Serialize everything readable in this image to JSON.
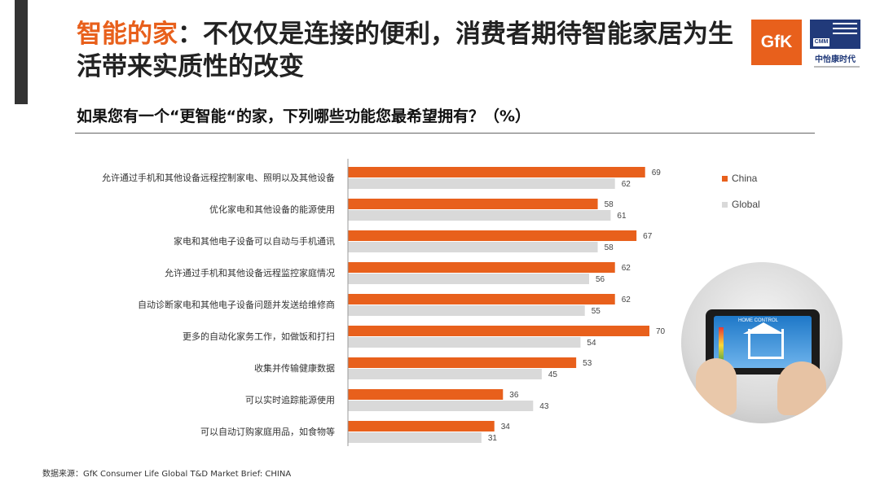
{
  "header": {
    "title_highlight": "智能的家",
    "title_rest": "：不仅仅是连接的便利，消费者期待智能家居为生活带来实质性的改变",
    "subtitle": "如果您有一个“更智能“的家，下列哪些功能您最希望拥有？（%）"
  },
  "logos": {
    "gfk": "GfK",
    "cmm_mark": "CMM",
    "cmm_name": "中怡康时代"
  },
  "photo": {
    "screen_label": "HOME CONTROL"
  },
  "footer": {
    "source": "数据来源：GfK Consumer Life Global T&D Market Brief: CHINA"
  },
  "colors": {
    "china": "#e8601c",
    "global": "#d9d9d9",
    "title_accent": "#e8601c"
  },
  "chart_data": {
    "type": "bar",
    "orientation": "horizontal",
    "title": "如果您有一个“更智能“的家，下列哪些功能您最希望拥有？（%）",
    "categories": [
      "允许通过手机和其他设备远程控制家电、照明以及其他设备",
      "优化家电和其他设备的能源使用",
      "家电和其他电子设备可以自动与手机通讯",
      "允许通过手机和其他设备远程监控家庭情况",
      "自动诊断家电和其他电子设备问题并发送给维修商",
      "更多的自动化家务工作，如做饭和打扫",
      "收集并传输健康数据",
      "可以实时追踪能源使用",
      "可以自动订购家庭用品，如食物等"
    ],
    "series": [
      {
        "name": "China",
        "color": "#e8601c",
        "values": [
          69,
          58,
          67,
          62,
          62,
          70,
          53,
          36,
          34
        ]
      },
      {
        "name": "Global",
        "color": "#d9d9d9",
        "values": [
          62,
          61,
          58,
          56,
          55,
          54,
          45,
          43,
          31
        ]
      }
    ],
    "xlim": [
      0,
      70
    ],
    "legend": "right",
    "data_labels": true,
    "grid": false
  }
}
